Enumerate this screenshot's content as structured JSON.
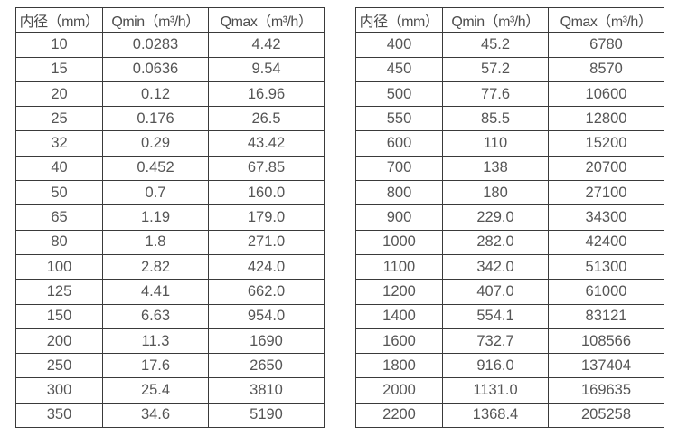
{
  "colors": {
    "background": "#ffffff",
    "border": "#3a3a3a",
    "text": "#555555"
  },
  "chart_data": [
    {
      "type": "table",
      "name": "small-diameter-flow-ranges",
      "columns": [
        "内径（mm）",
        "Qmin（m³/h）",
        "Qmax（m³/h）"
      ],
      "rows": [
        [
          "10",
          "0.0283",
          "4.42"
        ],
        [
          "15",
          "0.0636",
          "9.54"
        ],
        [
          "20",
          "0.12",
          "16.96"
        ],
        [
          "25",
          "0.176",
          "26.5"
        ],
        [
          "32",
          "0.29",
          "43.42"
        ],
        [
          "40",
          "0.452",
          "67.85"
        ],
        [
          "50",
          "0.7",
          "160.0"
        ],
        [
          "65",
          "1.19",
          "179.0"
        ],
        [
          "80",
          "1.8",
          "271.0"
        ],
        [
          "100",
          "2.82",
          "424.0"
        ],
        [
          "125",
          "4.41",
          "662.0"
        ],
        [
          "150",
          "6.63",
          "954.0"
        ],
        [
          "200",
          "11.3",
          "1690"
        ],
        [
          "250",
          "17.6",
          "2650"
        ],
        [
          "300",
          "25.4",
          "3810"
        ],
        [
          "350",
          "34.6",
          "5190"
        ]
      ]
    },
    {
      "type": "table",
      "name": "large-diameter-flow-ranges",
      "columns": [
        "内径（mm）",
        "Qmin（m³/h）",
        "Qmax（m³/h）"
      ],
      "rows": [
        [
          "400",
          "45.2",
          "6780"
        ],
        [
          "450",
          "57.2",
          "8570"
        ],
        [
          "500",
          "77.6",
          "10600"
        ],
        [
          "550",
          "85.5",
          "12800"
        ],
        [
          "600",
          "110",
          "15200"
        ],
        [
          "700",
          "138",
          "20700"
        ],
        [
          "800",
          "180",
          "27100"
        ],
        [
          "900",
          "229.0",
          "34300"
        ],
        [
          "1000",
          "282.0",
          "42400"
        ],
        [
          "1100",
          "342.0",
          "51300"
        ],
        [
          "1200",
          "407.0",
          "61000"
        ],
        [
          "1400",
          "554.1",
          "83121"
        ],
        [
          "1600",
          "732.7",
          "108566"
        ],
        [
          "1800",
          "916.0",
          "137404"
        ],
        [
          "2000",
          "1131.0",
          "169635"
        ],
        [
          "2200",
          "1368.4",
          "205258"
        ]
      ]
    }
  ]
}
